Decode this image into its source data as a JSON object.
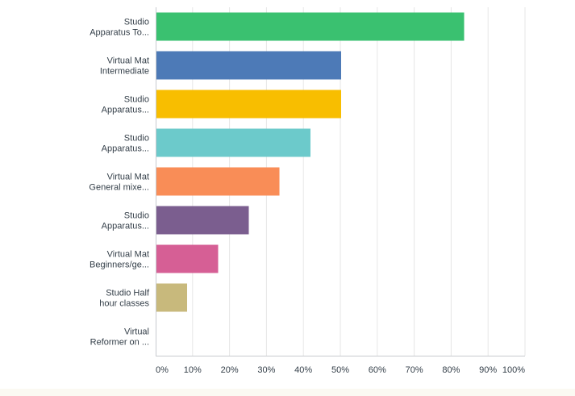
{
  "chart_data": {
    "type": "bar",
    "orientation": "horizontal",
    "categories": [
      [
        "Studio",
        "Apparatus To..."
      ],
      [
        "Virtual Mat",
        "Intermediate"
      ],
      [
        "Studio",
        "Apparatus..."
      ],
      [
        "Studio",
        "Apparatus..."
      ],
      [
        "Virtual Mat",
        "General mixe..."
      ],
      [
        "Studio",
        "Apparatus..."
      ],
      [
        "Virtual Mat",
        "Beginners/ge..."
      ],
      [
        "Studio Half",
        "hour classes"
      ],
      [
        "Virtual",
        "Reformer on ..."
      ]
    ],
    "values": [
      83.3,
      50,
      50,
      41.7,
      33.3,
      25,
      16.7,
      8.3,
      0
    ],
    "colors": [
      "#3ac170",
      "#4d7ab7",
      "#f8be00",
      "#6ccacb",
      "#f98d57",
      "#7b5e8f",
      "#d65f95",
      "#c8b97c",
      "#9aa2a8"
    ],
    "x_ticks": [
      "0%",
      "10%",
      "20%",
      "30%",
      "40%",
      "50%",
      "60%",
      "70%",
      "80%",
      "90%",
      "100%"
    ],
    "xlim": [
      0,
      100
    ],
    "grid": true,
    "title": "",
    "xlabel": "",
    "ylabel": ""
  }
}
